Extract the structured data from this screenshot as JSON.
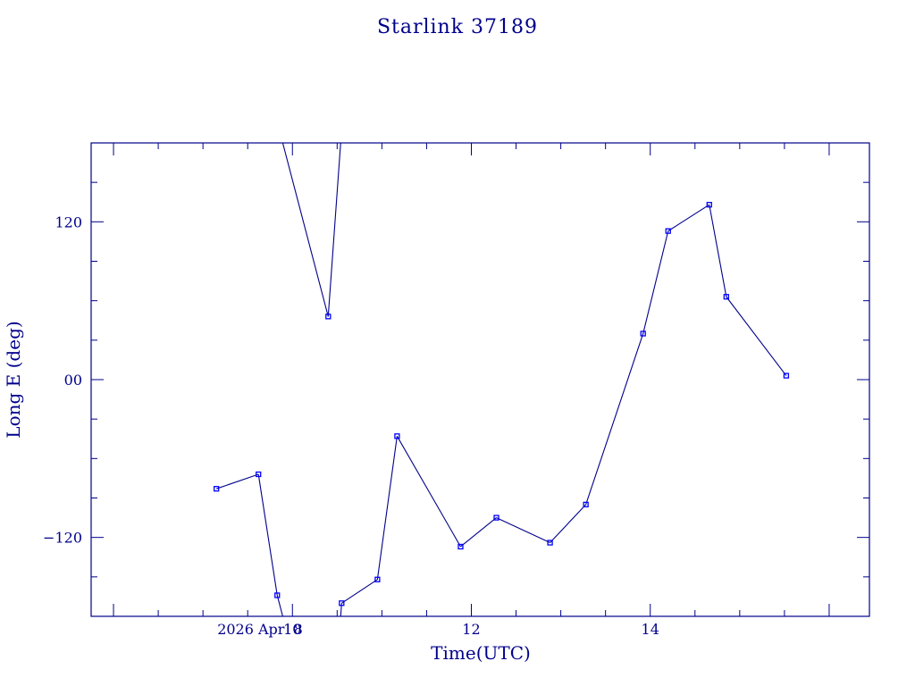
{
  "chart_data": {
    "type": "line",
    "title": "Starlink 37189",
    "xlabel": "Time(UTC)",
    "ylabel": "Long E (deg)",
    "date_label": "2026 Apr  8",
    "xlim": [
      7.75,
      16.45
    ],
    "ylim": [
      -180,
      180
    ],
    "x_ticks": [
      {
        "value": 10,
        "label": "10"
      },
      {
        "value": 12,
        "label": "12"
      },
      {
        "value": 14,
        "label": "14"
      }
    ],
    "y_ticks": [
      {
        "value": 120,
        "label": "120"
      },
      {
        "value": 0,
        "label": "00"
      },
      {
        "value": -120,
        "label": "−120"
      }
    ],
    "x_minor_step": 0.5,
    "y_minor_step": 30,
    "wrap_threshold": 180,
    "series": [
      {
        "points": [
          {
            "x": 9.15,
            "y": -83
          },
          {
            "x": 9.62,
            "y": -72
          },
          {
            "x": 9.83,
            "y": -164
          },
          {
            "x": 10.4,
            "y": 48
          },
          {
            "x": 10.55,
            "y": -170
          },
          {
            "x": 10.95,
            "y": -152
          },
          {
            "x": 11.17,
            "y": -43
          },
          {
            "x": 11.88,
            "y": -127
          },
          {
            "x": 12.28,
            "y": -105
          },
          {
            "x": 12.88,
            "y": -124
          },
          {
            "x": 13.28,
            "y": -95
          },
          {
            "x": 13.92,
            "y": 35
          },
          {
            "x": 14.2,
            "y": 113
          },
          {
            "x": 14.66,
            "y": 133
          },
          {
            "x": 14.85,
            "y": 63
          },
          {
            "x": 15.52,
            "y": 3
          }
        ]
      }
    ]
  }
}
